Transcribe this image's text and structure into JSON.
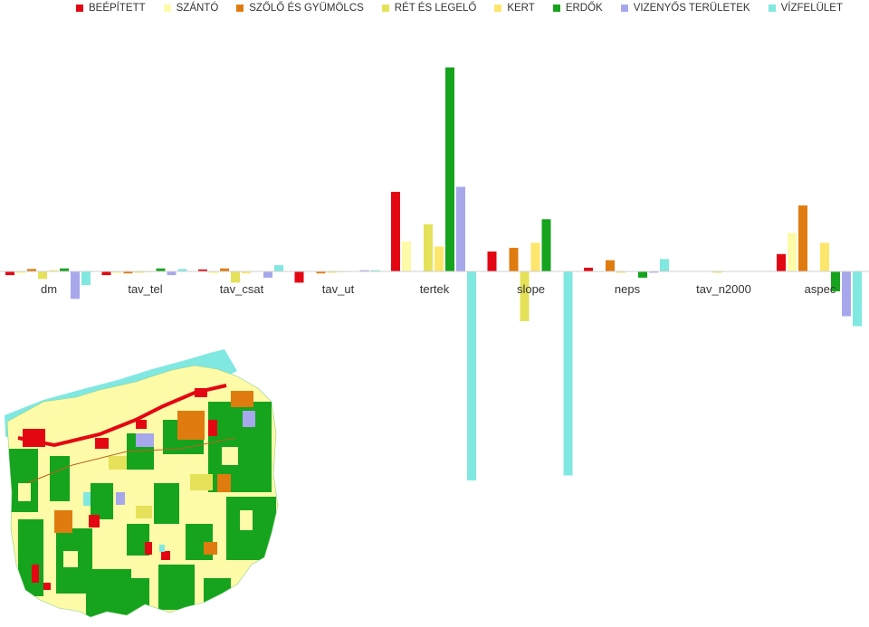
{
  "chart_data": {
    "type": "bar",
    "legend_position": "top",
    "grid": false,
    "ylim": [
      -0.85,
      0.83
    ],
    "categories": [
      "dm",
      "tav_tel",
      "tav_csat",
      "tav_ut",
      "tertek",
      "slope",
      "neps",
      "tav_n2000",
      "aspect"
    ],
    "category_labels": [
      "dm",
      "tav_tel",
      "tav_csat",
      "tav_ut",
      "tertek",
      "slope",
      "neps",
      "tav_n2000",
      "aspec"
    ],
    "series": [
      {
        "name": "BEÉPÍTETT",
        "color": "#e30613",
        "values": [
          -0.015,
          -0.015,
          0.008,
          -0.045,
          0.32,
          0.08,
          0.015,
          0.0,
          0.07
        ]
      },
      {
        "name": "SZÁNTÓ",
        "color": "#fdfaa8",
        "values": [
          -0.008,
          -0.008,
          -0.008,
          0.0,
          0.12,
          0.0,
          0.0,
          0.0,
          0.155
        ]
      },
      {
        "name": "SZŐLŐ ÉS GYÜMÖLCS",
        "color": "#e07b10",
        "values": [
          0.01,
          -0.008,
          0.012,
          -0.008,
          0.0,
          0.095,
          0.045,
          0.0,
          0.265
        ]
      },
      {
        "name": "RÉT ÉS LEGELŐ",
        "color": "#e5e25a",
        "values": [
          -0.03,
          -0.005,
          -0.045,
          -0.005,
          0.19,
          -0.2,
          -0.005,
          -0.005,
          0.0
        ]
      },
      {
        "name": "KERT",
        "color": "#fde66c",
        "values": [
          0.005,
          -0.003,
          -0.008,
          -0.003,
          0.1,
          0.115,
          0.0,
          0.0,
          0.115
        ]
      },
      {
        "name": "ERDŐK",
        "color": "#16a31d",
        "values": [
          0.012,
          0.012,
          0.0,
          0.0,
          0.82,
          0.21,
          -0.025,
          0.0,
          -0.08
        ]
      },
      {
        "name": "VIZENYŐS TERÜLETEK",
        "color": "#a7a8ec",
        "values": [
          -0.11,
          -0.015,
          -0.025,
          0.005,
          0.34,
          0.0,
          -0.005,
          0.0,
          -0.18
        ]
      },
      {
        "name": "VÍZFELÜLET",
        "color": "#80e8e1",
        "values": [
          -0.055,
          0.01,
          0.025,
          0.005,
          -0.84,
          -0.82,
          0.05,
          0.0,
          -0.22
        ]
      }
    ]
  }
}
